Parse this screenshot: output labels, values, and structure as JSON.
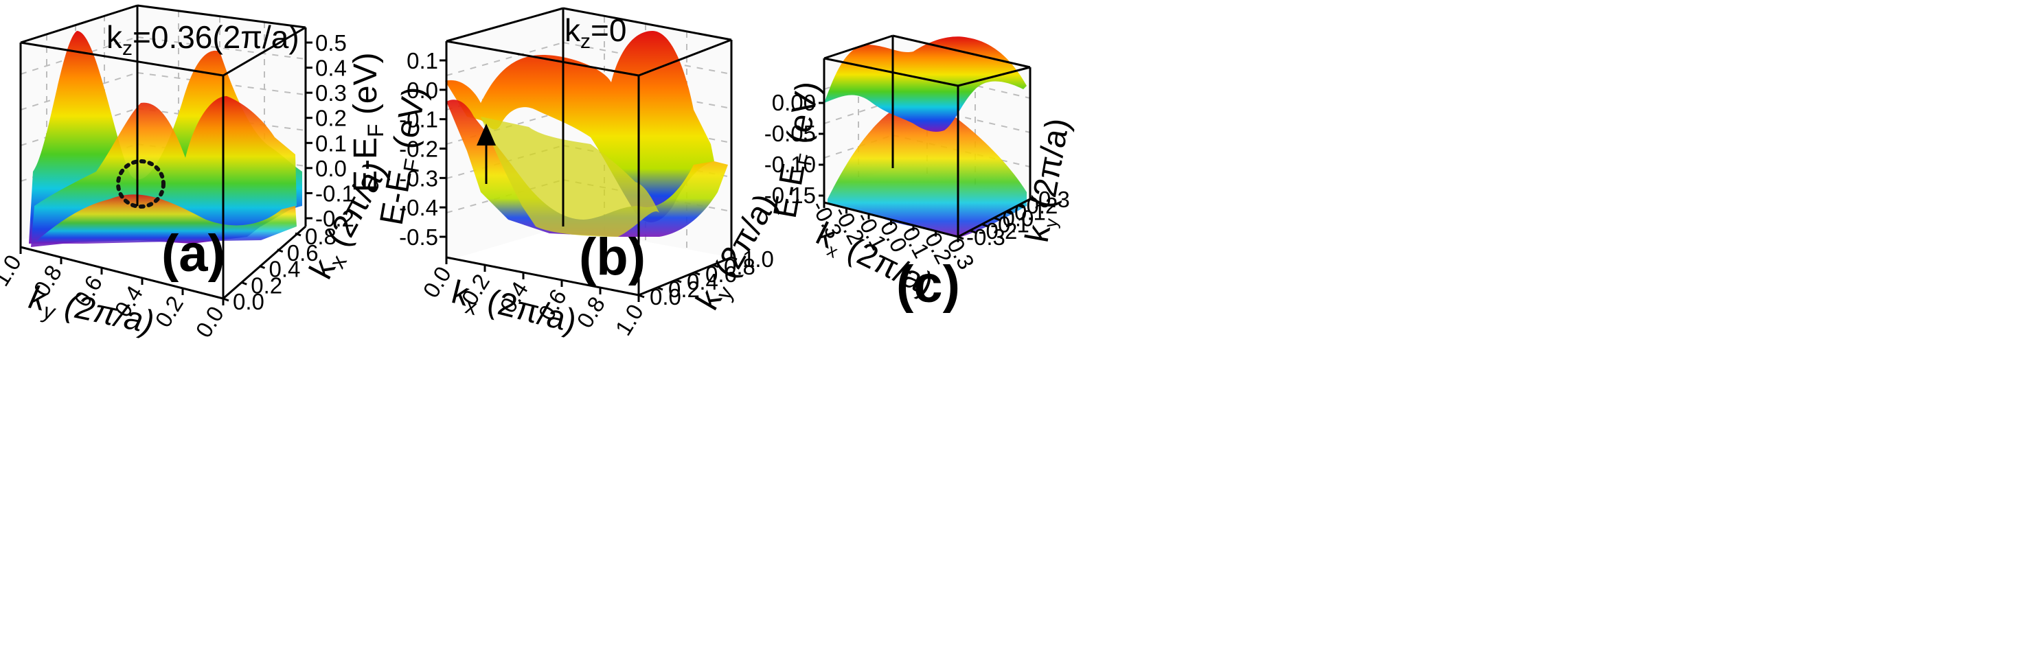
{
  "chart_data": [
    {
      "panel": "(a)",
      "type": "surface3d",
      "annotation": {
        "text": "k",
        "sub": "z",
        "rest": "=0.36(2π/a)"
      },
      "xlabel": {
        "text": "k",
        "sub": "y",
        "rest": " (2π/a)"
      },
      "ylabel": {
        "text": "k",
        "sub": "x",
        "rest": " (2π/a)"
      },
      "zlabel": {
        "text": "E-E",
        "sub": "F",
        "rest": " (eV)"
      },
      "xlim": [
        0.0,
        1.0
      ],
      "ylim": [
        0.0,
        1.0
      ],
      "zlim": [
        -0.2,
        0.5
      ],
      "x_ticks": [
        "1.0",
        "0.8",
        "0.6",
        "0.4",
        "0.2",
        "0.0"
      ],
      "y_ticks": [
        "0.0",
        "0.2",
        "0.4",
        "0.6",
        "0.8"
      ],
      "z_ticks": [
        "0.5",
        "0.4",
        "0.3",
        "0.2",
        "0.1",
        "0.0",
        "-0.1",
        "-0.2"
      ],
      "marker": "dotted circle"
    },
    {
      "panel": "(b)",
      "type": "surface3d",
      "annotation": {
        "text": "k",
        "sub": "z",
        "rest": "=0"
      },
      "xlabel": {
        "text": "k",
        "sub": "x",
        "rest": " (2π/a)"
      },
      "ylabel": {
        "text": "k",
        "sub": "y",
        "rest": " (2π/a)"
      },
      "zlabel": {
        "text": "E-E",
        "sub": "F",
        "rest": " (eV)"
      },
      "xlim": [
        0.0,
        1.0
      ],
      "ylim": [
        0.0,
        1.0
      ],
      "zlim": [
        -0.5,
        0.1
      ],
      "x_ticks": [
        "0.0",
        "0.2",
        "0.4",
        "0.6",
        "0.8",
        "1.0"
      ],
      "y_ticks": [
        "0.0",
        "0.2",
        "0.4",
        "0.6",
        "0.8",
        "1.0"
      ],
      "z_ticks": [
        "0.1",
        "0.0",
        "-0.1",
        "-0.2",
        "-0.3",
        "-0.4",
        "-0.5"
      ],
      "marker": "arrow"
    },
    {
      "panel": "(c)",
      "type": "surface3d",
      "xlabel": {
        "text": "k",
        "sub": "x",
        "rest": " (2π/a)"
      },
      "ylabel": {
        "text": "k",
        "sub": "y",
        "rest": " (2π/a)"
      },
      "zlabel": {
        "text": "E-E",
        "sub": "F",
        "rest": " (eV)"
      },
      "xlim": [
        -0.3,
        0.3
      ],
      "ylim": [
        -0.3,
        0.3
      ],
      "zlim": [
        -0.15,
        0.0
      ],
      "x_ticks": [
        "-0.3",
        "-0.2",
        "-0.1",
        "0.0",
        "0.1",
        "0.2",
        "0.3"
      ],
      "y_ticks": [
        "-0.3",
        "-0.2",
        "-0.1",
        "0.0",
        "0.1",
        "0.2",
        "0.3"
      ],
      "z_ticks": [
        "0.00",
        "-0.05",
        "-0.10",
        "-0.15"
      ]
    }
  ],
  "colors": {
    "surface_top": "#e01010",
    "surface_orange": "#ff8c00",
    "surface_yellow": "#f4e400",
    "surface_green": "#4ccc22",
    "surface_cyan": "#12c8e0",
    "surface_blue": "#1848e8",
    "surface_violet": "#7a1ab8"
  }
}
